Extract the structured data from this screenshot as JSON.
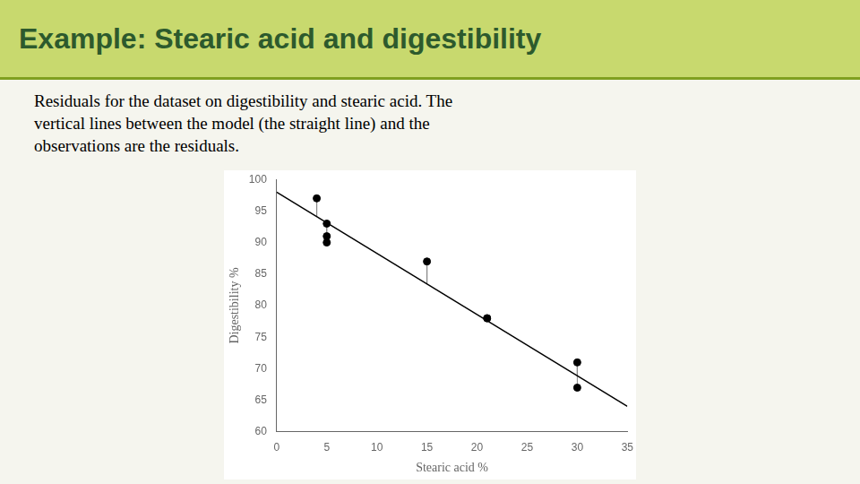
{
  "chart_data": {
    "type": "scatter",
    "title": "Example:  Stearic acid and digestibility",
    "subtitle": [
      "Residuals for the dataset on digestibility and stearic acid. The",
      "vertical lines between the model (the straight line) and the",
      "observations are the residuals."
    ],
    "x_label": "Stearic acid %",
    "y_label": "Digestibility %",
    "xlim": [
      0,
      35
    ],
    "ylim": [
      60,
      100
    ],
    "xticks": [
      0,
      5,
      10,
      15,
      20,
      25,
      30,
      35
    ],
    "yticks": [
      60,
      65,
      70,
      75,
      80,
      85,
      90,
      95,
      100
    ],
    "grid": false,
    "series": [
      {
        "type": "line",
        "color": "black",
        "x": [
          0,
          35
        ],
        "values": [
          98.0,
          64.05
        ]
      },
      {
        "type": "scatter",
        "color": "black",
        "marker": "circle",
        "x": [
          4,
          5,
          5,
          5,
          15,
          21,
          21,
          30,
          30
        ],
        "values": [
          97,
          93,
          91,
          90,
          87,
          78,
          78,
          71,
          67
        ],
        "fitted": [
          94.12,
          93.15,
          93.15,
          93.15,
          83.45,
          77.63,
          77.63,
          68.9,
          68.9
        ]
      }
    ]
  }
}
